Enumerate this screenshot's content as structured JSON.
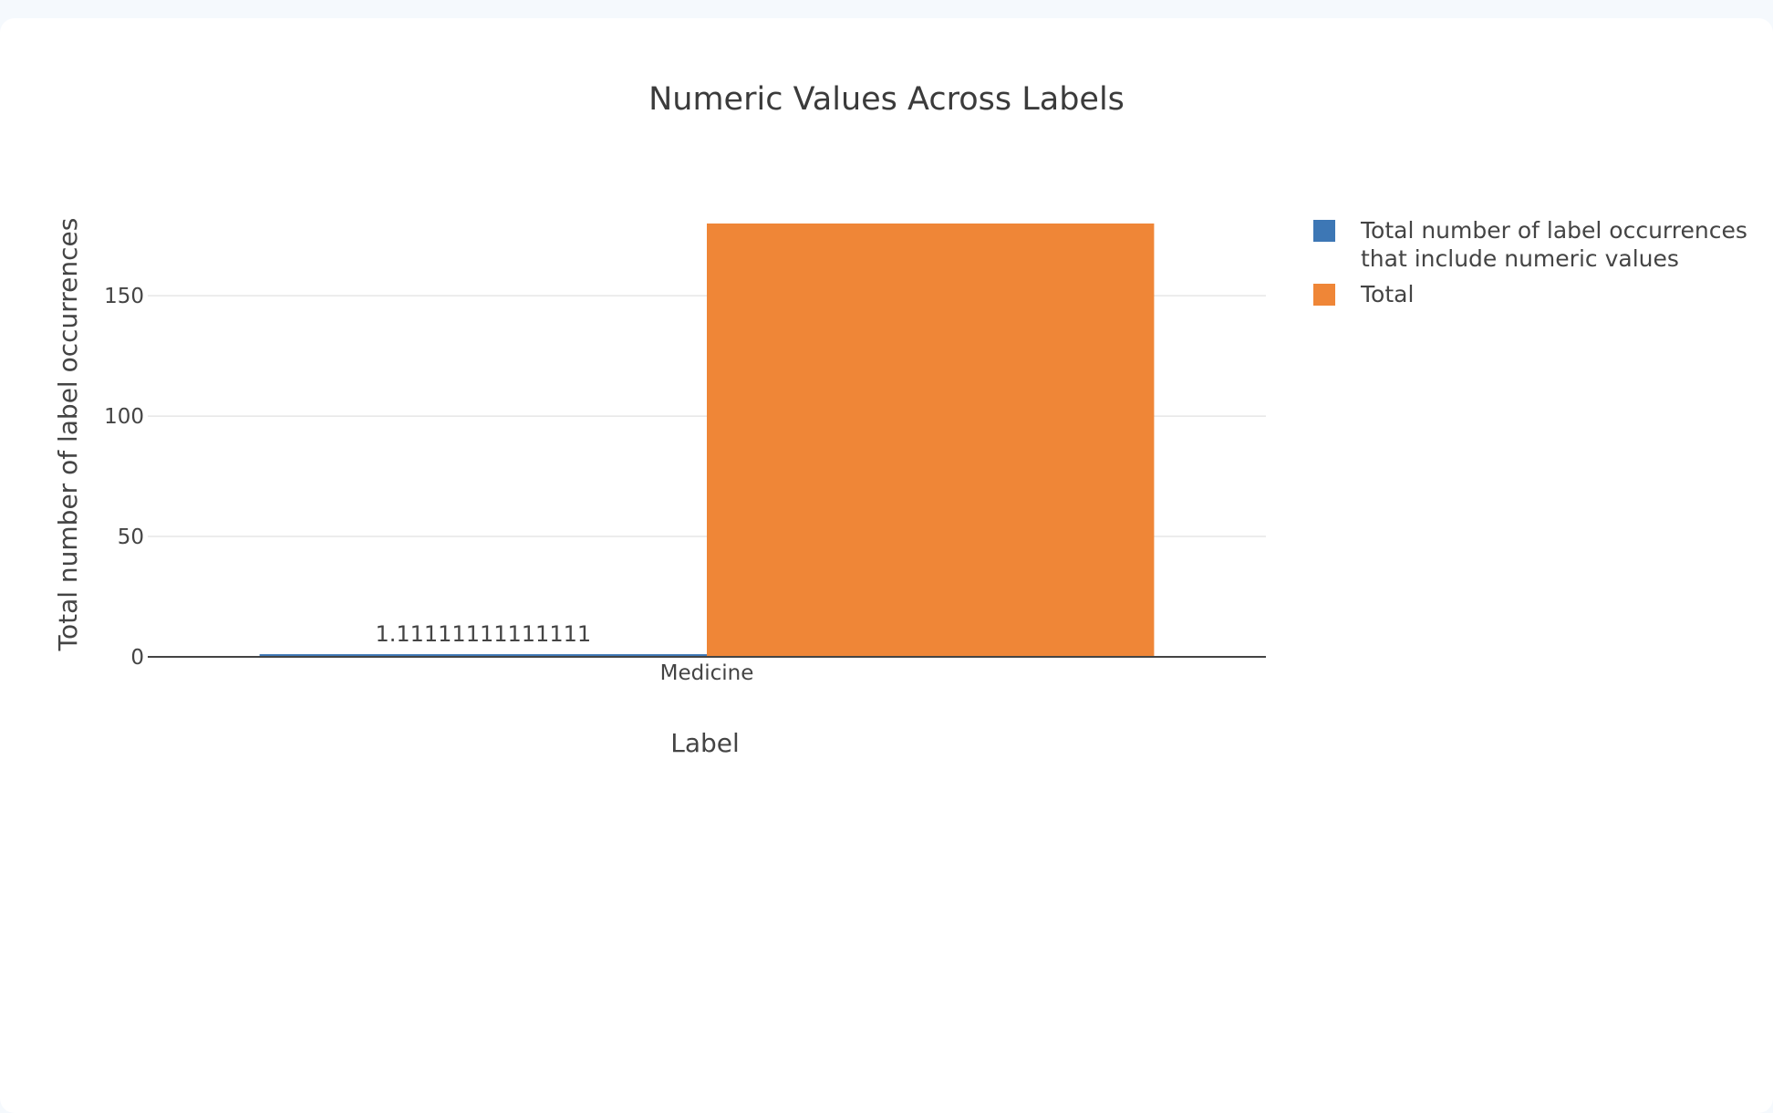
{
  "chart_data": {
    "type": "bar",
    "title": "Numeric Values Across Labels",
    "xlabel": "Label",
    "ylabel": "Total number of label occurrences",
    "categories": [
      "Medicine"
    ],
    "ylim": [
      0,
      180
    ],
    "yticks": [
      0,
      50,
      100,
      150
    ],
    "grid": true,
    "legend_position": "right",
    "series": [
      {
        "name": "Total number of label occurrences that include numeric values",
        "name_lines": [
          "Total number of label occurrences",
          "that include numeric values"
        ],
        "values": [
          1.1111111111111112
        ],
        "data_labels": [
          "1.11111111111111"
        ],
        "color": "#3d77b5"
      },
      {
        "name": "Total",
        "name_lines": [
          "Total"
        ],
        "values": [
          180
        ],
        "data_labels": [
          ""
        ],
        "color": "#ef8637"
      }
    ]
  }
}
